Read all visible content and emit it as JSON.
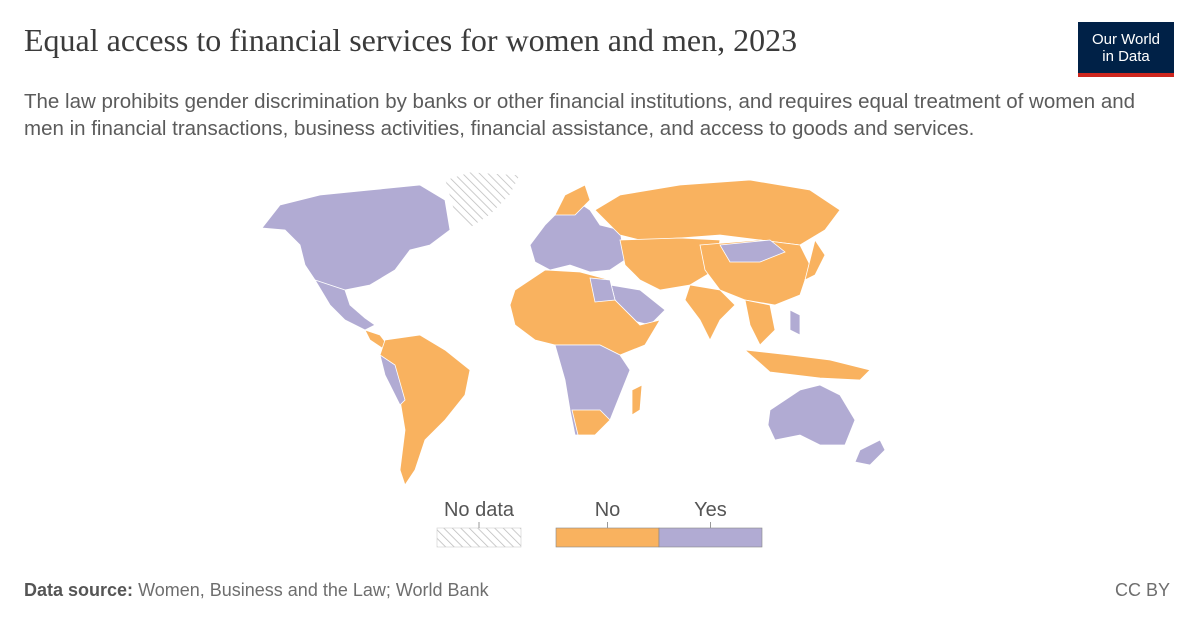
{
  "header": {
    "title": "Equal access to financial services for women and men, 2023",
    "subtitle": "The law prohibits gender discrimination by banks or other financial institutions, and requires equal treatment of women and men in financial transactions, business activities, financial assistance, and access to goods and services.",
    "logo": [
      "Our World",
      "in Data"
    ]
  },
  "legend": {
    "items": [
      {
        "label": "No data",
        "pattern": "hatch"
      },
      {
        "label": "No",
        "color": "#f9b25f"
      },
      {
        "label": "Yes",
        "color": "#b1abd3"
      }
    ]
  },
  "footer": {
    "source_label": "Data source:",
    "source": "Women, Business and the Law; World Bank",
    "license": "CC BY"
  }
}
